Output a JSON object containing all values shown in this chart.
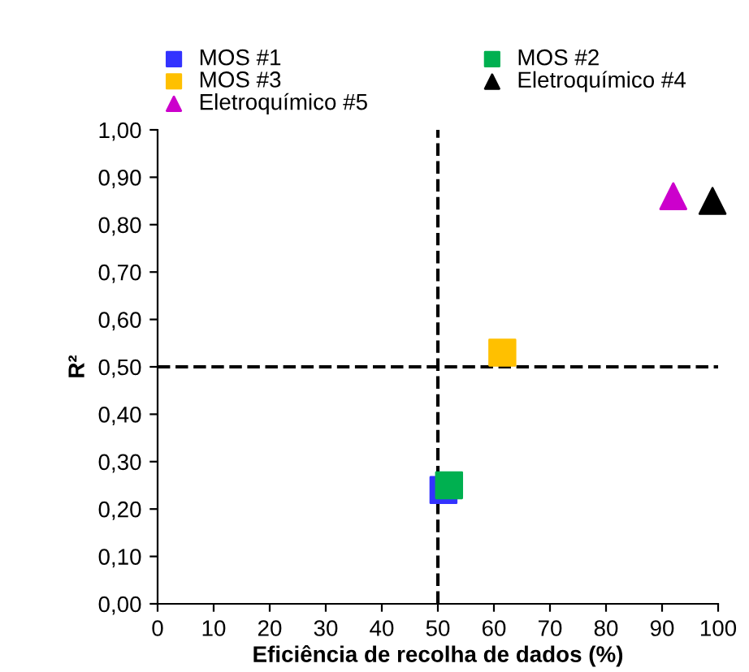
{
  "chart_data": {
    "type": "scatter",
    "xlabel": "Eficiência de recolha de dados (%)",
    "ylabel": "R²",
    "series": [
      {
        "name": "MOS #1",
        "color": "#3333ff",
        "marker": "square",
        "x": [
          51
        ],
        "values": [
          0.24
        ]
      },
      {
        "name": "MOS #2",
        "color": "#00b050",
        "marker": "square",
        "x": [
          52
        ],
        "values": [
          0.25
        ]
      },
      {
        "name": "MOS #3",
        "color": "#ffc000",
        "marker": "square",
        "x": [
          61.5
        ],
        "values": [
          0.53
        ]
      },
      {
        "name": "Eletroquímico #4",
        "color": "#000000",
        "marker": "triangle",
        "x": [
          99
        ],
        "values": [
          0.85
        ]
      },
      {
        "name": "Eletroquímico #5",
        "color": "#cc00cc",
        "marker": "triangle",
        "x": [
          92
        ],
        "values": [
          0.86
        ]
      }
    ],
    "xlim": [
      0,
      100
    ],
    "xticks": [
      0,
      10,
      20,
      30,
      40,
      50,
      60,
      70,
      80,
      90,
      100
    ],
    "ylim": [
      0,
      1
    ],
    "yticks": [
      {
        "value": 0,
        "label": "0,00"
      },
      {
        "value": 0.1,
        "label": "0,10"
      },
      {
        "value": 0.2,
        "label": "0,20"
      },
      {
        "value": 0.3,
        "label": "0,30"
      },
      {
        "value": 0.4,
        "label": "0,40"
      },
      {
        "value": 0.5,
        "label": "0,50"
      },
      {
        "value": 0.6,
        "label": "0,60"
      },
      {
        "value": 0.7,
        "label": "0,70"
      },
      {
        "value": 0.8,
        "label": "0,80"
      },
      {
        "value": 0.9,
        "label": "0,90"
      },
      {
        "value": 1,
        "label": "1,00"
      }
    ],
    "ref_lines": [
      {
        "axis": "x",
        "value": 50,
        "color": "#000000",
        "line_style": "dashed"
      },
      {
        "axis": "y",
        "value": 0.5,
        "color": "#000000",
        "line_style": "dashed"
      }
    ],
    "grid": false,
    "legend": "top"
  }
}
